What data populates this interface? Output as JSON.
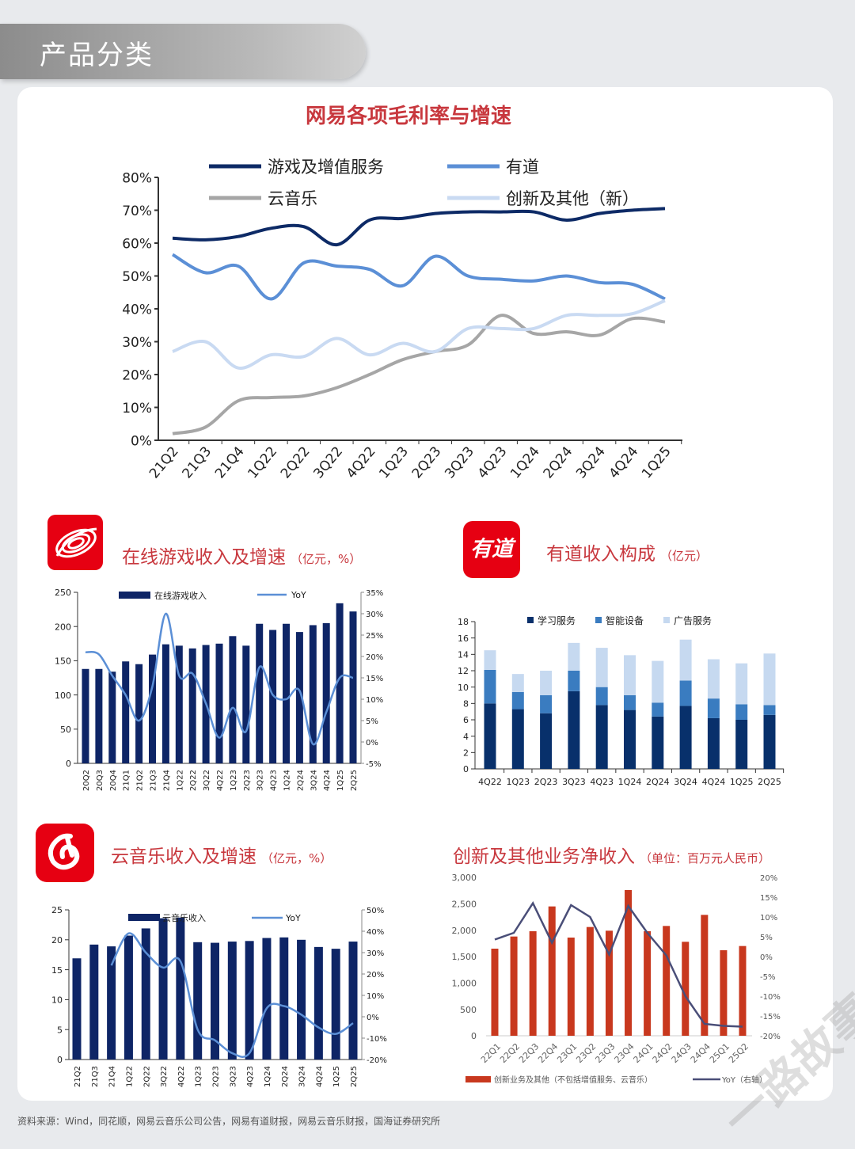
{
  "header": {
    "title": "产品分类"
  },
  "source": "资料来源：Wind，同花顺，网易云音乐公司公告，网易有道财报，网易云音乐财报，国海证券研究所",
  "watermark": "一路故事",
  "logos": {
    "youdao": "有道"
  },
  "chart_data": [
    {
      "id": "margin",
      "type": "line",
      "title": "网易各项毛利率与增速",
      "ylim": [
        0,
        80
      ],
      "yticks": [
        "0%",
        "10%",
        "20%",
        "30%",
        "40%",
        "50%",
        "60%",
        "70%",
        "80%"
      ],
      "categories": [
        "21Q2",
        "21Q3",
        "21Q4",
        "1Q22",
        "2Q22",
        "3Q22",
        "4Q22",
        "1Q23",
        "2Q23",
        "3Q23",
        "4Q23",
        "1Q24",
        "2Q24",
        "3Q24",
        "4Q24",
        "1Q25"
      ],
      "series": [
        {
          "name": "游戏及增值服务",
          "color": "#0d2a66",
          "values": [
            61.5,
            61,
            62,
            64.5,
            65,
            59.5,
            67,
            67.5,
            69,
            69.5,
            69.5,
            69.5,
            67,
            69,
            70,
            70.5
          ]
        },
        {
          "name": "有道",
          "color": "#5b8fd6",
          "values": [
            56.5,
            51,
            53,
            43,
            54,
            53,
            52,
            47,
            56,
            50,
            49,
            48.5,
            50,
            48,
            47.5,
            43
          ]
        },
        {
          "name": "云音乐",
          "color": "#a6a6a6",
          "values": [
            2,
            4,
            12,
            13,
            13.5,
            16,
            20,
            24.5,
            27,
            29,
            38,
            32.5,
            33,
            32,
            37,
            36
          ]
        },
        {
          "name": "创新及其他（新）",
          "color": "#c9daf2",
          "values": [
            27,
            30,
            22,
            26,
            25.5,
            31,
            26,
            29.5,
            27,
            34,
            34,
            34,
            38,
            38,
            38.5,
            42.5
          ]
        }
      ],
      "legend": "top",
      "grid": false
    },
    {
      "id": "games",
      "type": "bar+line",
      "title": "在线游戏收入及增速",
      "unit": "（亿元，%）",
      "categories": [
        "20Q2",
        "20Q3",
        "20Q4",
        "21Q1",
        "21Q2",
        "21Q3",
        "21Q4",
        "1Q22",
        "2Q22",
        "3Q22",
        "4Q22",
        "1Q23",
        "2Q23",
        "3Q23",
        "4Q23",
        "1Q24",
        "2Q24",
        "3Q24",
        "4Q24",
        "1Q25",
        "2Q25"
      ],
      "ylim": [
        0,
        250
      ],
      "yticks": [
        "0",
        "50",
        "100",
        "150",
        "200",
        "250"
      ],
      "y2lim": [
        -5,
        35
      ],
      "y2ticks": [
        "-5%",
        "0%",
        "5%",
        "10%",
        "15%",
        "20%",
        "25%",
        "30%",
        "35%"
      ],
      "series": [
        {
          "name": "在线游戏收入",
          "color": "#0e2566",
          "axis": "left",
          "values": [
            138,
            138,
            134,
            149,
            145,
            159,
            174,
            172,
            168,
            173,
            175,
            186,
            172,
            204,
            195,
            204,
            192,
            202,
            205,
            234,
            222
          ]
        },
        {
          "name": "YoY",
          "color": "#5b8fd6",
          "axis": "right",
          "values": [
            21,
            20.5,
            15.5,
            11,
            5,
            13,
            30,
            15.5,
            16,
            9,
            1,
            8,
            2.5,
            17.5,
            11,
            10,
            12,
            -0.5,
            7,
            15,
            15
          ]
        }
      ]
    },
    {
      "id": "youdao",
      "type": "stacked-bar",
      "title": "有道收入构成",
      "unit": "（亿元）",
      "categories": [
        "4Q22",
        "1Q23",
        "2Q23",
        "3Q23",
        "4Q23",
        "1Q24",
        "2Q24",
        "3Q24",
        "4Q24",
        "1Q25",
        "2Q25"
      ],
      "ylim": [
        0,
        18
      ],
      "yticks": [
        "0",
        "2",
        "4",
        "6",
        "8",
        "10",
        "12",
        "14",
        "16",
        "18"
      ],
      "series": [
        {
          "name": "学习服务",
          "color": "#08306b",
          "values": [
            8,
            7.3,
            6.8,
            9.5,
            7.8,
            7.2,
            6.4,
            7.7,
            6.2,
            6,
            6.6
          ]
        },
        {
          "name": "智能设备",
          "color": "#3a7cc0",
          "values": [
            4.1,
            2.1,
            2.2,
            2.5,
            2.2,
            1.8,
            1.7,
            3.1,
            2.4,
            1.9,
            1.2
          ]
        },
        {
          "name": "广告服务",
          "color": "#c6d9f0",
          "values": [
            2.4,
            2.2,
            3,
            3.4,
            4.8,
            4.9,
            5.1,
            5,
            4.8,
            5,
            6.3
          ]
        }
      ]
    },
    {
      "id": "music",
      "type": "bar+line",
      "title": "云音乐收入及增速",
      "unit": "（亿元，%）",
      "categories": [
        "21Q2",
        "21Q3",
        "21Q4",
        "1Q22",
        "2Q22",
        "3Q22",
        "4Q22",
        "1Q23",
        "2Q23",
        "3Q23",
        "4Q23",
        "1Q24",
        "2Q24",
        "3Q24",
        "4Q24",
        "1Q25",
        "2Q25"
      ],
      "ylim": [
        0,
        25
      ],
      "yticks": [
        "0",
        "5",
        "10",
        "15",
        "20",
        "25"
      ],
      "y2lim": [
        -20,
        50
      ],
      "y2ticks": [
        "-20%",
        "-10%",
        "0%",
        "10%",
        "20%",
        "30%",
        "40%",
        "50%"
      ],
      "series": [
        {
          "name": "云音乐收入",
          "color": "#0e2566",
          "axis": "left",
          "values": [
            16.9,
            19.2,
            18.9,
            20.7,
            21.9,
            23.6,
            23.7,
            19.6,
            19.5,
            19.7,
            19.8,
            20.3,
            20.4,
            20,
            18.8,
            18.5,
            19.7
          ]
        },
        {
          "name": "YoY",
          "color": "#5b8fd6",
          "axis": "right",
          "values": [
            null,
            null,
            24,
            39,
            30,
            23,
            26,
            -6,
            -11,
            -17,
            -17,
            4,
            5,
            1,
            -5,
            -8,
            -3
          ]
        }
      ]
    },
    {
      "id": "innovation",
      "type": "bar+line",
      "title": "创新及其他业务净收入",
      "unit": "（单位：百万元人民币）",
      "categories": [
        "22Q1",
        "22Q2",
        "22Q3",
        "22Q4",
        "23Q1",
        "23Q2",
        "23Q3",
        "23Q4",
        "24Q1",
        "24Q2",
        "24Q3",
        "24Q4",
        "25Q1",
        "25Q2"
      ],
      "ylim": [
        0,
        3000
      ],
      "yticks": [
        "0",
        "500",
        "1,000",
        "1,500",
        "2,000",
        "2,500",
        "3,000"
      ],
      "y2lim": [
        -20,
        20
      ],
      "y2ticks": [
        "-20%",
        "-15%",
        "-10%",
        "-5%",
        "0%",
        "5%",
        "10%",
        "15%",
        "20%"
      ],
      "series": [
        {
          "name": "创新业务及其他（不包括增值服务、云音乐）",
          "color": "#c8381e",
          "axis": "left",
          "values": [
            1650,
            1880,
            1980,
            2450,
            1860,
            2060,
            1990,
            2760,
            1980,
            2080,
            1780,
            2290,
            1620,
            1700
          ]
        },
        {
          "name": "YoY（右轴）",
          "color": "#4a4e78",
          "axis": "right",
          "values": [
            4.3,
            6,
            13.5,
            3.5,
            13,
            10,
            0.5,
            12.8,
            6,
            0.3,
            -10,
            -17,
            -17.5,
            -17.7
          ]
        }
      ]
    }
  ]
}
